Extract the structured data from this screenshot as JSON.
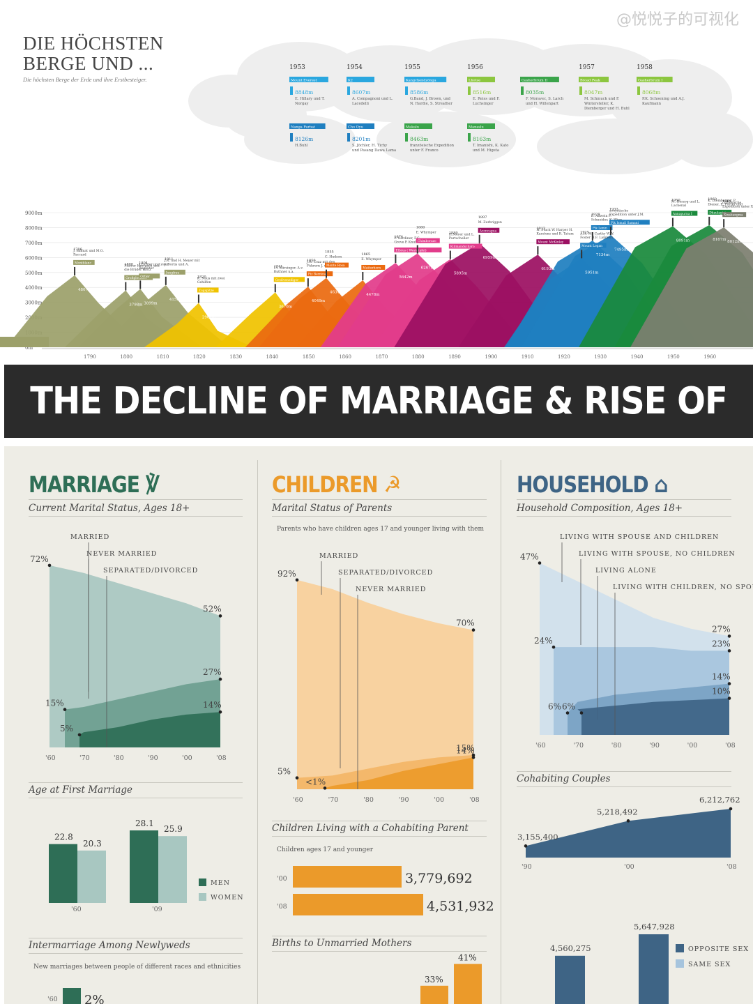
{
  "watermark": "@悦悦子的可视化",
  "mountains": {
    "title_line1": "DIE HÖCHSTEN",
    "title_line2": "BERGE UND ...",
    "subtitle": "Die höchsten Berge der Erde und ihre Erstbesteiger.",
    "chart_data": {
      "type": "area",
      "y_ticks": [
        "0m",
        "1000m",
        "2000m",
        "3000m",
        "4000m",
        "5000m",
        "6000m",
        "7000m",
        "8000m",
        "9000m"
      ],
      "x_ticks": [
        "1790",
        "1800",
        "1810",
        "1820",
        "1830",
        "1840",
        "1850",
        "1860",
        "1870",
        "1880",
        "1890",
        "1900",
        "1910",
        "1920",
        "1930",
        "1940",
        "1950",
        "1960"
      ],
      "colors": [
        "#9ca06a",
        "#f0c300",
        "#eb6a10",
        "#e23c8b",
        "#9c1062",
        "#1f7fc0",
        "#1a8a3c",
        "#7d7f70"
      ],
      "peaks": [
        {
          "year": 1786,
          "height": 4807,
          "label": "4807m",
          "names": "J. Balmat und M.G. Paccard",
          "mountain": "Montblanc"
        },
        {
          "year": 1800,
          "height": 3798,
          "label": "3798m",
          "names": "Pfarrer Horrasch und die Brüder Klotz",
          "mountain": "Großglockner"
        },
        {
          "year": 1804,
          "height": 3899,
          "label": "3899m",
          "names": "J.Pichler und zwei Begleiter",
          "mountain": "Ortler"
        },
        {
          "year": 1811,
          "height": 4158,
          "label": "4158m",
          "names": "J.R. und H. Meyer mit J. Bortis und A. Volker",
          "mountain": "Jungfrau"
        },
        {
          "year": 1820,
          "height": 2962,
          "label": "2962m",
          "names": "K. Naus mit zwei Gehilfen",
          "mountain": "Zugspitze"
        },
        {
          "year": 1841,
          "height": 3670,
          "label": "3670m",
          "names": "I.v. Kürsinger, A.v. Ruthner u.a.",
          "mountain": "Großvenediger"
        },
        {
          "year": 1850,
          "height": 4049,
          "label": "4049m",
          "names": "J.W. Coaz mit den Führern J. und L.R. Tscharner",
          "mountain": "Piz Bernina"
        },
        {
          "year": 1855,
          "height": 4634,
          "label": "4634m",
          "names": "C. Hudson",
          "mountain": "Monte Rosa"
        },
        {
          "year": 1865,
          "height": 4478,
          "label": "4478m",
          "names": "E. Whymper",
          "mountain": "Matterhorn"
        },
        {
          "year": 1874,
          "height": 5642,
          "label": "5642m",
          "names": "F. Gardiner, F.C. Grove P. Knubel, W.A. Moore und H. Walker",
          "mountain": "Elbrus ( Westgipfel)"
        },
        {
          "year": 1880,
          "height": 6267,
          "label": "6267m",
          "names": "E. Whymper",
          "mountain": "Chimborazo"
        },
        {
          "year": 1889,
          "height": 5895,
          "label": "5895m",
          "names": "H.Meyer und L. Purtscheller",
          "mountain": "Kilimandscharo"
        },
        {
          "year": 1897,
          "height": 6959,
          "label": "6959m",
          "names": "M. Zurbriggen",
          "mountain": "Aconcagua"
        },
        {
          "year": 1913,
          "height": 6193,
          "label": "6193m",
          "names": "H. Stuck W. Harper H. Karstens und R. Tatum",
          "mountain": "Mount McKinley"
        },
        {
          "year": 1925,
          "height": 5951,
          "label": "5951m",
          "names": "A.H. Mc Carthy W.W. Foster H.F. Lambert, L. Lindsay N.H. Read und A. Carpé",
          "mountain": "Mount Logan"
        },
        {
          "year": 1928,
          "height": 7134,
          "label": "7134m",
          "names": "E. Allwein F. Schneider, K. Wien (Expedition unter W.R. Rickmers)",
          "mountain": "Pik Lenin"
        },
        {
          "year": 1933,
          "height": 7495,
          "label": "7495m",
          "names": "sowjetische Expedition unter J.M. Abalakow",
          "mountain": "Pik Ismail Samani"
        },
        {
          "year": 1950,
          "height": 8091,
          "label": "8091m",
          "names": "M. Herzog und L. Lachenal",
          "mountain": "Annapurna I"
        },
        {
          "year": 1960,
          "height": 8167,
          "label": "8167m",
          "names": "K. Diemberger, P. Diener, E. Forrer und A. Schelbert",
          "mountain": "Dhaulagiri"
        },
        {
          "year": 1964,
          "height": 8012,
          "label": "8012m",
          "names": "chinesische Expedition unter Xu Ling",
          "mountain": "Xixabangma"
        }
      ],
      "cloud_years": [
        "1953",
        "1954",
        "1955",
        "1956",
        "1957",
        "1958"
      ],
      "cloud_entries": [
        {
          "mountain": "Mount Everest",
          "height": "8848m",
          "names": "E. Hillary und T. Norgay",
          "color": "#2aa7df"
        },
        {
          "mountain": "K2",
          "height": "8607m",
          "names": "A. Compagnoni und L. Lacedelli",
          "color": "#2aa7df"
        },
        {
          "mountain": "Kangchendzönga",
          "height": "8586m",
          "names": "G.Band, J. Brown, und N. Hardie, S. Streather",
          "color": "#2aa7df"
        },
        {
          "mountain": "Lhotse",
          "height": "8516m",
          "names": "E. Reiss und F. Luchsinger",
          "color": "#8cc63f"
        },
        {
          "mountain": "Gasherbrum II",
          "height": "8035m",
          "names": "F. Moravec, S. Larch und H. Willenpart",
          "color": "#3aa44a"
        },
        {
          "mountain": "Broad Peak",
          "height": "8047m",
          "names": "M. Schmuck und F. Wintersteller, K. Diemberger und H. Buhl",
          "color": "#8cc63f"
        },
        {
          "mountain": "Gasherbrum I",
          "height": "8068m",
          "names": "P.K. Schoening und A.J. Kaufmann",
          "color": "#8cc63f"
        },
        {
          "mountain": "Nanga Parbat",
          "height": "8126m",
          "names": "H.Buhl",
          "color": "#1f7fc0"
        },
        {
          "mountain": "Cho Oyu",
          "height": "8201m",
          "names": "S. Jöchler, H. Tichy und Pasang Dawa Lama",
          "color": "#1f7fc0"
        },
        {
          "mountain": "Makalu",
          "height": "8463m",
          "names": "französische Expedition unter F. Franco",
          "color": "#3aa44a"
        },
        {
          "mountain": "Manaslu",
          "height": "8163m",
          "names": "T. Imanishi, K. Kato und M. Higeta",
          "color": "#3aa44a"
        }
      ]
    }
  },
  "banner": "THE DECLINE OF MARRIAGE & RISE OF NEW FAMILIES",
  "marriage": {
    "title": "MARRIAGE",
    "icon": "rings-icon",
    "sub1": "Current Marital Status, Ages 18+",
    "chart_data": {
      "type": "area",
      "x": [
        "'60",
        "'70",
        "'80",
        "'90",
        "'00",
        "'08"
      ],
      "series": [
        {
          "name": "MARRIED",
          "start": "72%",
          "end": "52%",
          "values": [
            72,
            69,
            65,
            61,
            57,
            52
          ],
          "color": "#a8c7c1"
        },
        {
          "name": "NEVER MARRIED",
          "start": "15%",
          "end": "27%",
          "values": [
            15,
            16,
            19,
            22,
            25,
            27
          ],
          "color": "#6d9e8f"
        },
        {
          "name": "SEPARATED/DIVORCED",
          "start": "5%",
          "end": "14%",
          "values": [
            5,
            6,
            8,
            11,
            13,
            14
          ],
          "color": "#2e6e56"
        }
      ]
    },
    "sub2": "Age at First Marriage",
    "age_chart": {
      "type": "bar",
      "categories": [
        "'60",
        "'09"
      ],
      "series": [
        {
          "name": "MEN",
          "values": [
            22.8,
            28.1
          ],
          "labels": [
            "22.8",
            "28.1"
          ],
          "color": "#2e6e56"
        },
        {
          "name": "WOMEN",
          "values": [
            20.3,
            25.9
          ],
          "labels": [
            "20.3",
            "25.9"
          ],
          "color": "#a8c7c1"
        }
      ]
    },
    "sub3": "Intermarriage Among Newlyweds",
    "note3": "New marriages between people of different races and ethnicities",
    "inter": {
      "year": "'60",
      "label": "2%",
      "value": 2
    }
  },
  "children": {
    "title": "CHILDREN",
    "icon": "baby-icon",
    "sub1": "Marital Status of Parents",
    "note1": "Parents who have children ages 17 and younger living with them",
    "chart_data": {
      "type": "area",
      "x": [
        "'60",
        "'70",
        "'80",
        "'90",
        "'00",
        "'08"
      ],
      "series": [
        {
          "name": "MARRIED",
          "start": "92%",
          "end": "70%",
          "values": [
            92,
            88,
            82,
            77,
            73,
            70
          ],
          "color": "#f8cf9a"
        },
        {
          "name": "SEPARATED/DIVORCED",
          "start": "5%",
          "end": "15%",
          "values": [
            5,
            6,
            9,
            12,
            14,
            15
          ],
          "color": "#f3b566"
        },
        {
          "name": "NEVER MARRIED",
          "start": "<1%",
          "end": "14%",
          "values": [
            0.5,
            1.5,
            4,
            8,
            11,
            14
          ],
          "color": "#eb9a2a"
        }
      ]
    },
    "sub2": "Children Living with a Cohabiting Parent",
    "note2": "Children ages 17 and younger",
    "cohab_children": {
      "type": "bar",
      "categories": [
        "'00",
        "'08"
      ],
      "values": [
        3779692,
        4531932
      ],
      "labels": [
        "3,779,692",
        "4,531,932"
      ]
    },
    "sub3": "Births to Unmarried Mothers",
    "births": {
      "labels": [
        "33%",
        "41%"
      ],
      "values": [
        33,
        41
      ]
    }
  },
  "household": {
    "title": "HOUSEHOLD",
    "icon": "house-icon",
    "sub1": "Household Composition, Ages 18+",
    "chart_data": {
      "type": "area",
      "x": [
        "'60",
        "'70",
        "'80",
        "'90",
        "'00",
        "'08"
      ],
      "series": [
        {
          "name": "LIVING WITH SPOUSE AND CHILDREN",
          "start": "47%",
          "end": "27%",
          "values": [
            47,
            42,
            37,
            32,
            29,
            27
          ],
          "color": "#cfe0ed"
        },
        {
          "name": "LIVING WITH SPOUSE, NO CHILDREN",
          "start": "24%",
          "end": "23%",
          "values": [
            24,
            24,
            24,
            24,
            23,
            23
          ],
          "color": "#a6c4dd"
        },
        {
          "name": "LIVING ALONE",
          "start": "6%",
          "end": "14%",
          "values": [
            6,
            9,
            11,
            12,
            13,
            14
          ],
          "color": "#7aa2c3"
        },
        {
          "name": "LIVING WITH CHILDREN, NO SPOUSE",
          "start": "6%",
          "end": "10%",
          "values": [
            6,
            7,
            8,
            9,
            9.5,
            10
          ],
          "color": "#3e6485"
        }
      ]
    },
    "sub2": "Cohabiting Couples",
    "cohab": {
      "type": "area",
      "x": [
        "'90",
        "'00",
        "'08"
      ],
      "values": [
        3155400,
        5218492,
        6212762
      ],
      "labels": [
        "3,155,400",
        "5,218,492",
        "6,212,762"
      ]
    },
    "same_sex": {
      "labels": [
        "4,560,275",
        "5,647,928"
      ],
      "values": [
        4560275,
        5647928
      ],
      "legend": [
        "OPPOSITE SEX",
        "SAME SEX"
      ],
      "colors": [
        "#3e6485",
        "#a6c4dd"
      ]
    }
  }
}
